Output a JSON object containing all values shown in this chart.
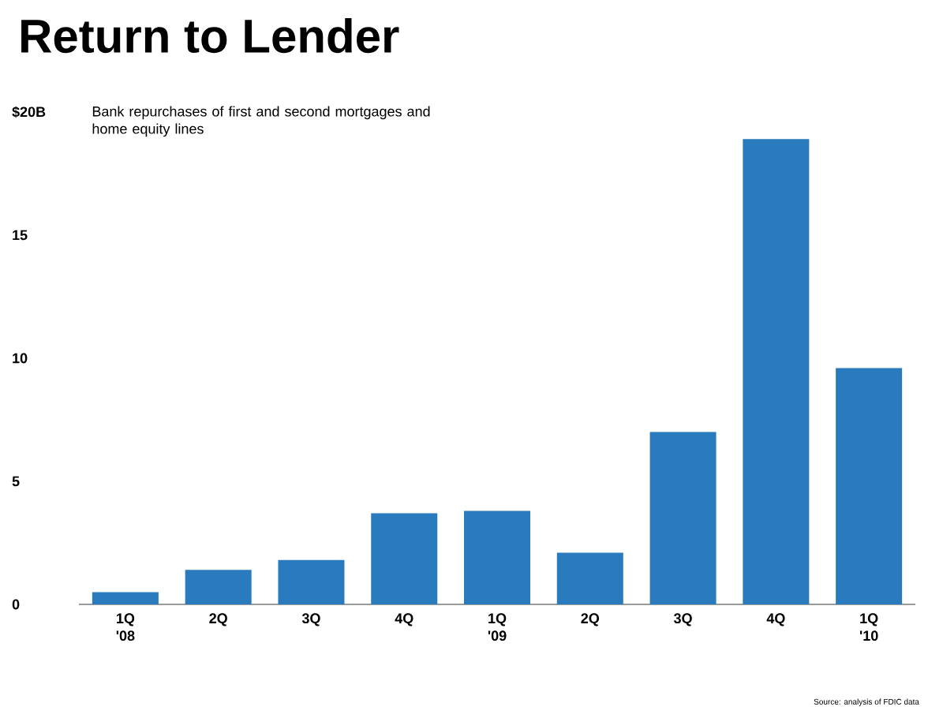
{
  "chart_data": {
    "type": "bar",
    "title": "Return to Lender",
    "subtitle": "Bank repurchases of first and second mortgages and home equity lines",
    "categories": [
      "1Q '08",
      "2Q",
      "3Q",
      "4Q",
      "1Q '09",
      "2Q",
      "3Q",
      "4Q",
      "1Q '10"
    ],
    "values": [
      0.5,
      1.4,
      1.8,
      3.7,
      3.8,
      2.1,
      7.0,
      18.9,
      9.6
    ],
    "color": "#2a7bbd",
    "ylim": [
      0,
      20
    ],
    "yticks": [
      0,
      5,
      10,
      15,
      {
        "value": 20,
        "label": "$20B"
      }
    ],
    "annotations": [
      "Source: analysis of FDIC data"
    ]
  }
}
